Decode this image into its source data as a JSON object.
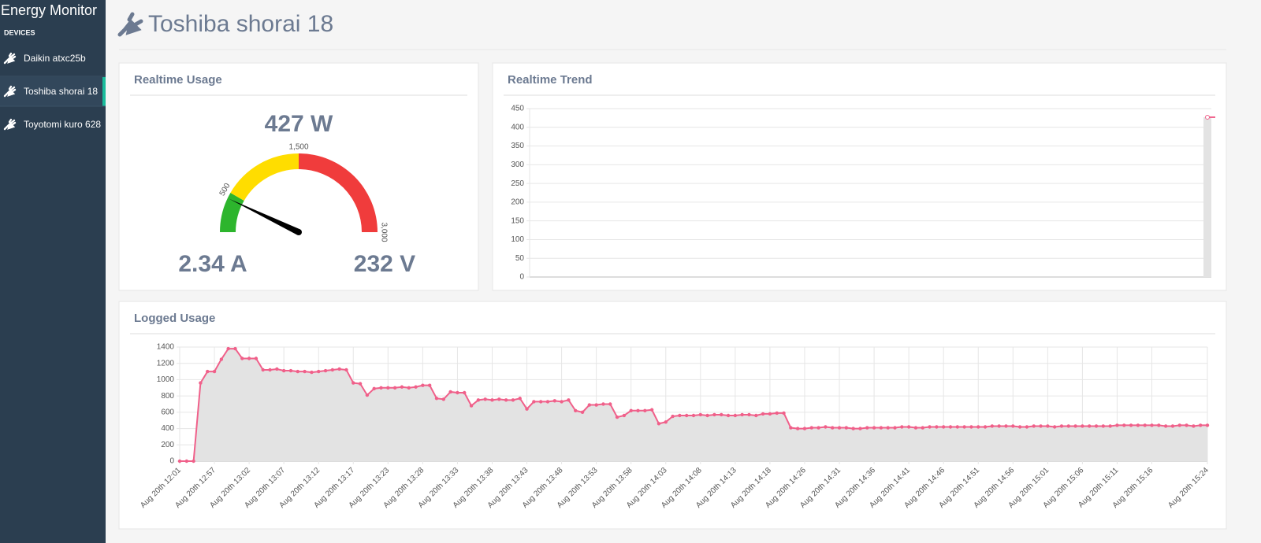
{
  "sidebar": {
    "title": "Energy Monitor",
    "section": "DEVICES",
    "devices": [
      "Daikin atxc25b",
      "Toshiba shorai 18",
      "Toyotomi kuro 628"
    ]
  },
  "header": {
    "title": "Toshiba shorai 18"
  },
  "panels": {
    "realtime_usage": {
      "title": "Realtime Usage",
      "current": "2.34 A",
      "voltage": "232 V"
    },
    "realtime_trend": {
      "title": "Realtime Trend"
    },
    "logged_usage": {
      "title": "Logged Usage"
    }
  },
  "chart_data": [
    {
      "type": "gauge",
      "values": [
        427
      ],
      "value_labels": [
        "427 W"
      ],
      "ylim": [
        0,
        3000
      ],
      "yticks": [
        500,
        {
          "value": 1500,
          "label": "1,500"
        },
        {
          "value": 3000,
          "label": "3,000"
        }
      ],
      "bands": [
        {
          "range": [
            0,
            500
          ],
          "color": "#2db52d"
        },
        {
          "range": [
            500,
            1500
          ],
          "color": "#ffdd00"
        },
        {
          "range": [
            1500,
            3000
          ],
          "color": "#f03c3c"
        }
      ],
      "needle_color": "#000000"
    },
    {
      "type": "line",
      "categories": [
        null
      ],
      "values": [
        427
      ],
      "color": "#f0608a",
      "area_color": "#e3e3e3",
      "ylim": [
        0,
        450
      ],
      "yticks": [
        0,
        50,
        100,
        150,
        200,
        250,
        300,
        350,
        400,
        450
      ],
      "grid": true,
      "xgrid": false
    },
    {
      "type": "line",
      "color": "#f0608a",
      "area_color": "#e3e3e3",
      "ylim": [
        0,
        1400
      ],
      "yticks": [
        0,
        200,
        400,
        600,
        800,
        1000,
        1200,
        1400
      ],
      "grid": true,
      "xgrid": true,
      "categories": [
        "Aug 20th 12:01",
        null,
        null,
        null,
        null,
        "Aug 20th 12:57",
        null,
        null,
        null,
        null,
        "Aug 20th 13:02",
        null,
        null,
        null,
        null,
        "Aug 20th 13:07",
        null,
        null,
        null,
        null,
        "Aug 20th 13:12",
        null,
        null,
        null,
        null,
        "Aug 20th 13:17",
        null,
        null,
        null,
        null,
        "Aug 20th 13:23",
        null,
        null,
        null,
        null,
        "Aug 20th 13:28",
        null,
        null,
        null,
        null,
        "Aug 20th 13:33",
        null,
        null,
        null,
        null,
        "Aug 20th 13:38",
        null,
        null,
        null,
        null,
        "Aug 20th 13:43",
        null,
        null,
        null,
        null,
        "Aug 20th 13:48",
        null,
        null,
        null,
        null,
        "Aug 20th 13:53",
        null,
        null,
        null,
        null,
        "Aug 20th 13:58",
        null,
        null,
        null,
        null,
        "Aug 20th 14:03",
        null,
        null,
        null,
        null,
        "Aug 20th 14:08",
        null,
        null,
        null,
        null,
        "Aug 20th 14:13",
        null,
        null,
        null,
        null,
        "Aug 20th 14:18",
        null,
        null,
        null,
        null,
        "Aug 20th 14:26",
        null,
        null,
        null,
        null,
        "Aug 20th 14:31",
        null,
        null,
        null,
        null,
        "Aug 20th 14:36",
        null,
        null,
        null,
        null,
        "Aug 20th 14:41",
        null,
        null,
        null,
        null,
        "Aug 20th 14:46",
        null,
        null,
        null,
        null,
        "Aug 20th 14:51",
        null,
        null,
        null,
        null,
        "Aug 20th 14:56",
        null,
        null,
        null,
        null,
        "Aug 20th 15:01",
        null,
        null,
        null,
        null,
        "Aug 20th 15:06",
        null,
        null,
        null,
        null,
        "Aug 20th 15:11",
        null,
        null,
        null,
        null,
        "Aug 20th 15:16",
        null,
        null,
        null,
        null,
        null,
        null,
        null,
        "Aug 20th 15:24"
      ],
      "values": [
        0,
        0,
        0,
        960,
        1100,
        1100,
        1250,
        1380,
        1380,
        1260,
        1260,
        1260,
        1120,
        1120,
        1130,
        1110,
        1110,
        1100,
        1100,
        1090,
        1100,
        1110,
        1120,
        1130,
        1120,
        960,
        950,
        810,
        890,
        900,
        900,
        900,
        910,
        900,
        910,
        930,
        930,
        770,
        760,
        850,
        840,
        840,
        680,
        750,
        760,
        750,
        760,
        750,
        750,
        770,
        640,
        730,
        730,
        730,
        740,
        730,
        750,
        620,
        600,
        690,
        690,
        700,
        700,
        540,
        560,
        620,
        620,
        620,
        630,
        460,
        480,
        550,
        560,
        560,
        560,
        570,
        560,
        570,
        570,
        560,
        560,
        570,
        570,
        560,
        580,
        580,
        590,
        590,
        410,
        400,
        400,
        410,
        410,
        420,
        410,
        410,
        410,
        400,
        400,
        410,
        410,
        410,
        410,
        410,
        420,
        420,
        410,
        410,
        420,
        420,
        420,
        420,
        420,
        420,
        420,
        420,
        420,
        430,
        430,
        430,
        430,
        420,
        420,
        430,
        430,
        430,
        420,
        430,
        430,
        430,
        430,
        430,
        430,
        430,
        430,
        440,
        440,
        440,
        440,
        440,
        440,
        440,
        430,
        430,
        440,
        440,
        430,
        440,
        440
      ]
    }
  ]
}
